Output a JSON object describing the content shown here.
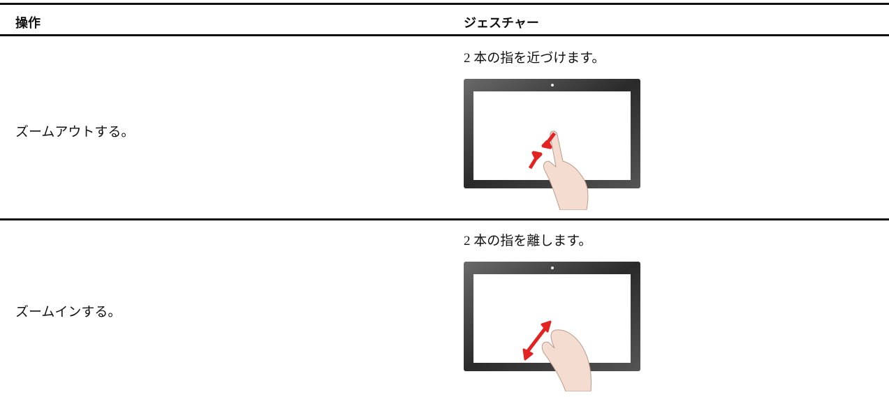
{
  "table": {
    "headers": [
      "操作",
      "ジェスチャー"
    ],
    "rows": [
      [
        "ズームアウトする。",
        "2 本の指を近づけます。"
      ],
      [
        "ズームインする。",
        "2 本の指を離します。"
      ]
    ]
  }
}
